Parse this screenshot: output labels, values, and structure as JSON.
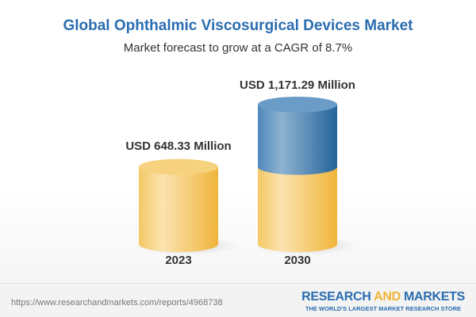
{
  "title": "Global Ophthalmic Viscosurgical Devices Market",
  "subtitle": "Market forecast to grow at a CAGR of 8.7%",
  "chart_data": {
    "type": "bar",
    "style": "3d-cylinder",
    "categories": [
      "2023",
      "2030"
    ],
    "values": [
      648.33,
      1171.29
    ],
    "data_labels": [
      "USD 648.33 Million",
      "USD 1,171.29 Million"
    ],
    "unit": "USD Million",
    "colors": {
      "base": "#f2c45a",
      "growth": "#3f7fb5"
    }
  },
  "footer": {
    "url": "https://www.researchandmarkets.com/reports/4968738",
    "logo_part1": "RESEARCH ",
    "logo_part2": "AND",
    "logo_part3": " MARKETS",
    "tagline": "THE WORLD'S LARGEST MARKET RESEARCH STORE"
  }
}
